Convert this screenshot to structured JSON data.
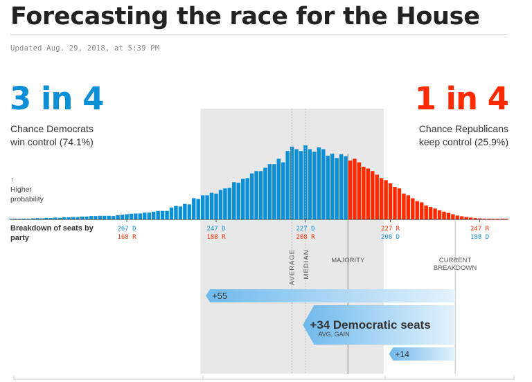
{
  "header": {
    "title": "Forecasting the race for the House",
    "updated": "Updated Aug. 29, 2018, at 5:39 PM"
  },
  "odds": {
    "democrats": {
      "headline": "3 in 4",
      "line1": "Chance Democrats",
      "line2": "win control (74.1%)",
      "probability_pct": 74.1
    },
    "republicans": {
      "headline": "1 in 4",
      "line1": "Chance Republicans",
      "line2": "keep control (25.9%)",
      "probability_pct": 25.9
    }
  },
  "labels": {
    "arrow": "↑",
    "higher": "Higher",
    "probability": "probability",
    "breakdown": "Breakdown of seats by party",
    "average": "AVERAGE",
    "median": "MEDIAN",
    "majority": "MAJORITY",
    "current1": "CURRENT",
    "current2": "BREAKDOWN"
  },
  "colors": {
    "dem": "#0d8fd6",
    "rep": "#ff2a00",
    "band": "#e8e8e8",
    "gain": "#6fb9ec"
  },
  "chart_data": {
    "type": "bar",
    "title": "Distribution of Democratic House seats",
    "xlabel": "Breakdown of seats by party",
    "ylabel": "Higher probability",
    "x_direction": "Democratic seats decreasing left to right",
    "x": [
      293,
      292,
      291,
      290,
      289,
      288,
      287,
      286,
      285,
      284,
      283,
      282,
      281,
      280,
      279,
      278,
      277,
      276,
      275,
      274,
      273,
      272,
      271,
      270,
      269,
      268,
      267,
      266,
      265,
      264,
      263,
      262,
      261,
      260,
      259,
      258,
      257,
      256,
      255,
      254,
      253,
      252,
      251,
      250,
      249,
      248,
      247,
      246,
      245,
      244,
      243,
      242,
      241,
      240,
      239,
      238,
      237,
      236,
      235,
      234,
      233,
      232,
      231,
      230,
      229,
      228,
      227,
      226,
      225,
      224,
      223,
      222,
      221,
      220,
      219,
      218,
      217,
      216,
      215,
      214,
      213,
      212,
      211,
      210,
      209,
      208,
      207,
      206,
      205,
      204,
      203,
      202,
      201,
      200,
      199,
      198,
      197,
      196,
      195,
      194,
      193,
      192,
      191,
      190,
      189,
      188,
      187,
      186,
      185,
      184,
      183,
      182
    ],
    "values": [
      0.02,
      0.02,
      0.02,
      0.03,
      0.03,
      0.04,
      0.05,
      0.04,
      0.06,
      0.05,
      0.07,
      0.06,
      0.08,
      0.08,
      0.09,
      0.09,
      0.11,
      0.11,
      0.13,
      0.13,
      0.14,
      0.14,
      0.14,
      0.13,
      0.16,
      0.18,
      0.2,
      0.22,
      0.23,
      0.23,
      0.26,
      0.26,
      0.3,
      0.33,
      0.33,
      0.33,
      0.46,
      0.52,
      0.5,
      0.6,
      0.58,
      0.82,
      0.79,
      0.93,
      0.93,
      1.03,
      1.0,
      1.14,
      1.2,
      1.22,
      1.44,
      1.42,
      1.57,
      1.6,
      1.78,
      1.87,
      1.87,
      2.0,
      2.14,
      2.14,
      2.35,
      2.21,
      2.65,
      2.82,
      2.72,
      2.65,
      2.87,
      2.72,
      2.62,
      2.79,
      2.72,
      2.47,
      2.55,
      2.38,
      2.52,
      2.45,
      2.28,
      2.35,
      2.21,
      2.04,
      1.97,
      1.87,
      1.73,
      1.6,
      1.52,
      1.4,
      1.26,
      1.2,
      1.0,
      0.93,
      0.82,
      0.71,
      0.66,
      0.54,
      0.48,
      0.42,
      0.35,
      0.3,
      0.25,
      0.2,
      0.15,
      0.12,
      0.09,
      0.07,
      0.05,
      0.04,
      0.03,
      0.02,
      0.02,
      0.01,
      0.01,
      0.01
    ],
    "majority_dem_seats": 218,
    "tick_labels": [
      {
        "dem": "267 D",
        "rep": "168 R",
        "dem_seats": 267
      },
      {
        "dem": "247 D",
        "rep": "188 R",
        "dem_seats": 247
      },
      {
        "dem": "227 D",
        "rep": "208 R",
        "dem_seats": 227
      },
      {
        "rep": "227 R",
        "dem": "208 D",
        "dem_seats": 208
      },
      {
        "rep": "247 R",
        "dem": "188 D",
        "dem_seats": 188
      }
    ],
    "band_80pct": [
      250,
      209
    ],
    "average_dem_seats": 228.5,
    "median_dem_seats": 227,
    "current_dem_seats": 194,
    "gains": [
      {
        "label": "+55",
        "from": 194,
        "to": 249,
        "sub": ""
      },
      {
        "label": "+34 Democratic seats",
        "from": 194,
        "to": 228.5,
        "sub": "AVG. GAIN"
      },
      {
        "label": "+14",
        "from": 194,
        "to": 208,
        "sub": ""
      }
    ]
  }
}
